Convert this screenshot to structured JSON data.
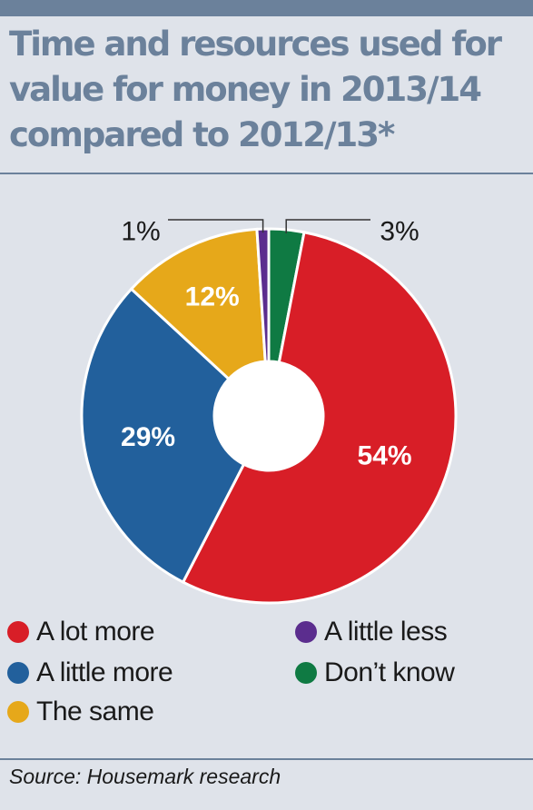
{
  "title": "Time and resources used for\nvalue for money in 2013/14\ncompared to 2012/13*",
  "source": "Source: Housemark research",
  "chart_data": {
    "type": "pie",
    "style": "donut",
    "title": "Time and resources used for value for money in 2013/14 compared to 2012/13*",
    "categories": [
      "A lot more",
      "A little more",
      "The same",
      "A little less",
      "Don't know"
    ],
    "values": [
      54,
      29,
      12,
      1,
      3
    ],
    "labels": [
      "54%",
      "29%",
      "12%",
      "1%",
      "3%"
    ],
    "colors": [
      "#d81e27",
      "#22609c",
      "#e6a81a",
      "#5b2d8e",
      "#0f7a43"
    ],
    "legend_placement": "bottom"
  },
  "legend": [
    {
      "label": "A lot more",
      "color": "#d81e27"
    },
    {
      "label": "A little less",
      "color": "#5b2d8e"
    },
    {
      "label": "A little more",
      "color": "#22609c"
    },
    {
      "label": "Don’t know",
      "color": "#0f7a43"
    },
    {
      "label": "The same",
      "color": "#e6a81a"
    }
  ]
}
